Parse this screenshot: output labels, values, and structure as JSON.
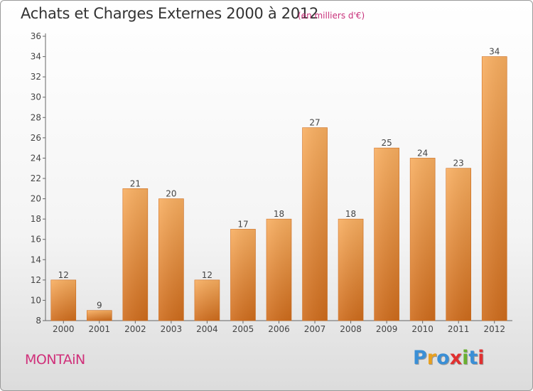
{
  "title": "Achats et Charges Externes 2000 à 2012",
  "subtitle": "(en milliers d'€)",
  "commune": "MONTAiN",
  "logo": {
    "text": "Proxiti",
    "colors": [
      "#3a8fd6",
      "#e8a020",
      "#3a8fd6",
      "#e03030",
      "#6ab030",
      "#3a8fd6",
      "#e03030"
    ]
  },
  "chart_data": {
    "type": "bar",
    "title": "Achats et Charges Externes 2000 à 2012",
    "subtitle": "(en milliers d'€)",
    "xlabel": "",
    "ylabel": "",
    "categories": [
      "2000",
      "2001",
      "2002",
      "2003",
      "2004",
      "2005",
      "2006",
      "2007",
      "2008",
      "2009",
      "2010",
      "2011",
      "2012"
    ],
    "values": [
      12,
      9,
      21,
      20,
      12,
      17,
      18,
      27,
      18,
      25,
      24,
      23,
      34
    ],
    "ylim": [
      8,
      36
    ],
    "yticks": [
      8,
      10,
      12,
      14,
      16,
      18,
      20,
      22,
      24,
      26,
      28,
      30,
      32,
      34,
      36
    ],
    "grid": false,
    "bar_color": "#f0923a",
    "bar_color_light": "#f8ae60",
    "bar_color_dark": "#cf6c1c"
  }
}
